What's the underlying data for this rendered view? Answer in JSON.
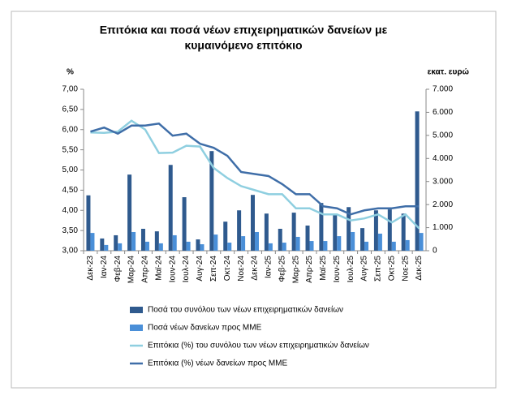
{
  "chart_data": {
    "type": "combo",
    "title": [
      "Επιτόκια και ποσά νέων επιχειρηματικών δανείων με",
      "κυμαινόμενο επιτόκιο"
    ],
    "y_label": "%",
    "y2_label": "εκατ. ευρώ",
    "categories": [
      "Δεκ-23",
      "Ιαν-24",
      "Φεβ-24",
      "Μαρ-24",
      "Απρ-24",
      "Μαϊ-24",
      "Ιουν-24",
      "Ιουλ-24",
      "Αυγ-24",
      "Σεπ-24",
      "Οκτ-24",
      "Νοε-24",
      "Δεκ-24",
      "Ιαν-25",
      "Φεβ-25",
      "Μαρ-25",
      "Απρ-25",
      "Μαϊ-25",
      "Ιουν-25",
      "Ιουλ-25",
      "Αυγ-25",
      "Σεπ-25",
      "Οκτ-25",
      "Νοε-25",
      "Δεκ-25"
    ],
    "series": [
      {
        "name": "Ποσά του συνόλου των νέων επιχειρηματικών δανείων",
        "type": "bar",
        "axis": "y2",
        "color": "#2f5a8e",
        "values": [
          2400,
          530,
          670,
          3300,
          950,
          840,
          3720,
          2320,
          490,
          4320,
          1260,
          1750,
          2420,
          1610,
          950,
          1650,
          1090,
          2070,
          1610,
          1890,
          980,
          1750,
          1790,
          1610,
          6040
        ]
      },
      {
        "name": "Ποσά νέων δανείων προς ΜΜΕ",
        "type": "bar",
        "axis": "y2",
        "color": "#4a8fd8",
        "values": [
          770,
          250,
          320,
          810,
          390,
          320,
          670,
          390,
          280,
          700,
          350,
          630,
          810,
          320,
          350,
          600,
          420,
          420,
          630,
          810,
          390,
          740,
          390,
          460,
          770
        ]
      },
      {
        "name": "Επιτόκια (%) του συνόλου των νέων επιχειρηματικών δανείων",
        "type": "line",
        "axis": "y",
        "color": "#8fcfe0",
        "values": [
          5.93,
          5.92,
          5.95,
          6.22,
          6.0,
          5.42,
          5.43,
          5.6,
          5.58,
          5.05,
          4.8,
          4.6,
          4.5,
          4.4,
          4.4,
          4.05,
          4.05,
          3.9,
          3.9,
          3.75,
          3.8,
          3.9,
          3.7,
          3.9,
          3.55
        ]
      },
      {
        "name": "Επιτόκια (%) νέων δανείων προς ΜΜΕ",
        "type": "line",
        "axis": "y",
        "color": "#3f6ea8",
        "values": [
          5.95,
          6.05,
          5.9,
          6.1,
          6.1,
          6.15,
          5.85,
          5.9,
          5.65,
          5.55,
          5.35,
          4.95,
          4.9,
          4.85,
          4.65,
          4.4,
          4.4,
          4.1,
          4.05,
          3.9,
          4.0,
          4.05,
          4.05,
          4.1,
          4.1
        ]
      }
    ],
    "ylim": [
      3,
      7
    ],
    "yticks": [
      {
        "value": 3,
        "label": "3,00"
      },
      {
        "value": 3.5,
        "label": "3,50"
      },
      {
        "value": 4,
        "label": "4,00"
      },
      {
        "value": 4.5,
        "label": "4,50"
      },
      {
        "value": 5,
        "label": "5,00"
      },
      {
        "value": 5.5,
        "label": "5,50"
      },
      {
        "value": 6,
        "label": "6,00"
      },
      {
        "value": 6.5,
        "label": "6,50"
      },
      {
        "value": 7,
        "label": "7,00"
      }
    ],
    "y2lim": [
      0,
      7000
    ],
    "y2ticks": [
      0,
      {
        "value": 1000,
        "label": "1.000"
      },
      {
        "value": 2000,
        "label": "2.000"
      },
      {
        "value": 3000,
        "label": "3.000"
      },
      {
        "value": 4000,
        "label": "4.000"
      },
      {
        "value": 5000,
        "label": "5.000"
      },
      {
        "value": 6000,
        "label": "6.000"
      },
      {
        "value": 7000,
        "label": "7.000"
      }
    ],
    "grid": false
  }
}
